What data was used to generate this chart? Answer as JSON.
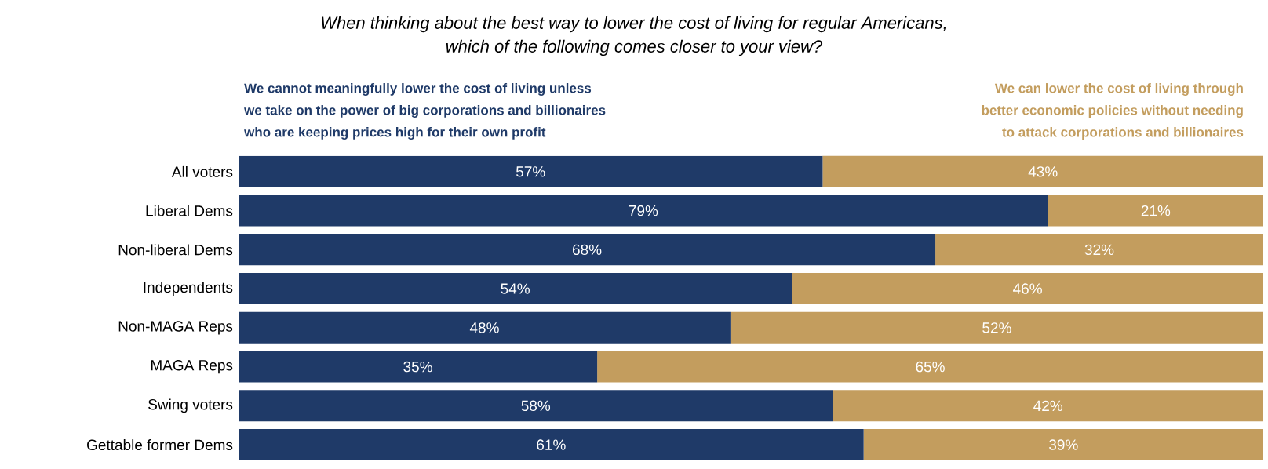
{
  "chart_data": {
    "type": "bar",
    "orientation": "horizontal",
    "stacked": true,
    "tick_labels": "y",
    "title": "When thinking about the best way to lower the cost of living for regular Americans,\nwhich of the following comes closer to your view?",
    "categories": [
      "All voters",
      "Liberal Dems",
      "Non-liberal Dems",
      "Independents",
      "Non-MAGA Reps",
      "MAGA Reps",
      "Swing voters",
      "Gettable former Dems"
    ],
    "series": [
      {
        "name": "We cannot meaningfully lower the cost of living unless\nwe take on the power of big corporations and billionaires\nwho are keeping prices high for their own profit",
        "color": "#1f3a68",
        "values": [
          57,
          79,
          68,
          54,
          48,
          35,
          58,
          61
        ],
        "value_labels": [
          "57%",
          "79%",
          "68%",
          "54%",
          "48%",
          "35%",
          "58%",
          "61%"
        ]
      },
      {
        "name": "We can lower the cost of living through\nbetter economic policies without needing\nto attack corporations and billionaires",
        "color": "#c39d5e",
        "values": [
          43,
          21,
          32,
          46,
          52,
          65,
          42,
          39
        ],
        "value_labels": [
          "43%",
          "21%",
          "32%",
          "46%",
          "52%",
          "65%",
          "42%",
          "39%"
        ]
      }
    ]
  }
}
